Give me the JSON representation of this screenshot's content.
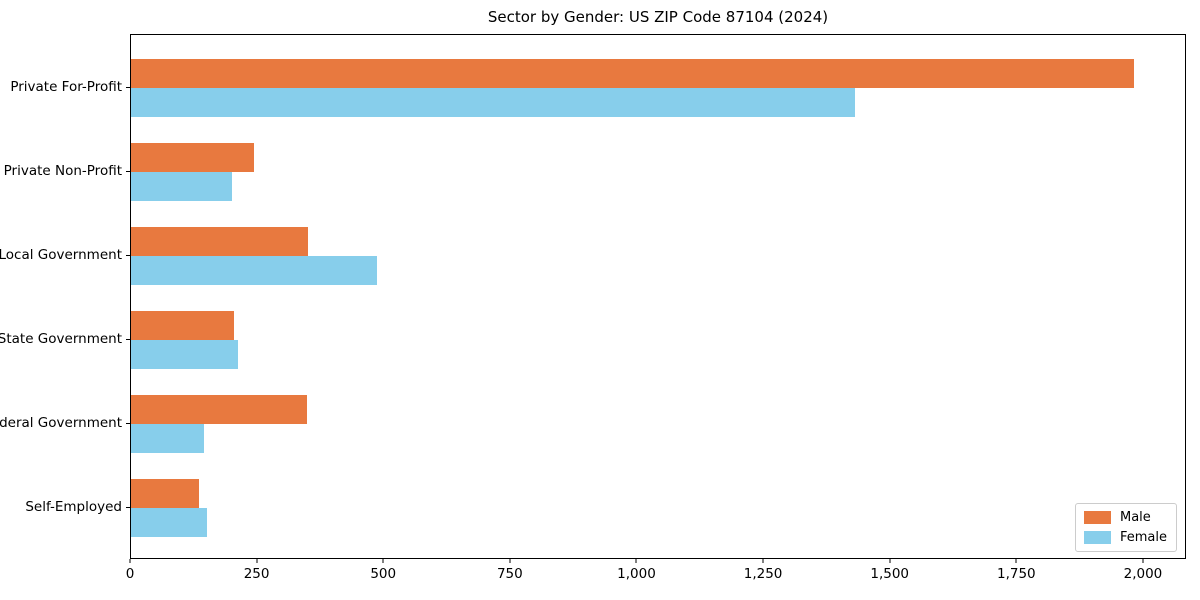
{
  "title": "Sector by Gender: US ZIP Code 87104 (2024)",
  "colors": {
    "male": "#e8793f",
    "female": "#87ceeb",
    "axis": "#000000",
    "legend_border": "#cccccc",
    "background": "#ffffff"
  },
  "chart_data": {
    "type": "bar",
    "orientation": "horizontal",
    "title": "Sector by Gender: US ZIP Code 87104 (2024)",
    "categories": [
      "Private For-Profit",
      "Private Non-Profit",
      "Local Government",
      "State Government",
      "Federal Government",
      "Self-Employed"
    ],
    "series": [
      {
        "name": "Male",
        "color": "#e8793f",
        "values": [
          1984,
          244,
          351,
          203,
          348,
          134
        ]
      },
      {
        "name": "Female",
        "color": "#87ceeb",
        "values": [
          1433,
          199,
          487,
          211,
          144,
          151
        ]
      }
    ],
    "xlabel": "",
    "ylabel": "",
    "xlim": [
      0,
      2085
    ],
    "xticks": [
      0,
      250,
      500,
      750,
      1000,
      1250,
      1500,
      1750,
      2000
    ],
    "xtick_labels": [
      "0",
      "250",
      "500",
      "750",
      "1,000",
      "1,250",
      "1,500",
      "1,750",
      "2,000"
    ],
    "grid": false,
    "legend_position": "lower right"
  },
  "legend": {
    "items": [
      {
        "label": "Male",
        "color": "#e8793f"
      },
      {
        "label": "Female",
        "color": "#87ceeb"
      }
    ]
  }
}
